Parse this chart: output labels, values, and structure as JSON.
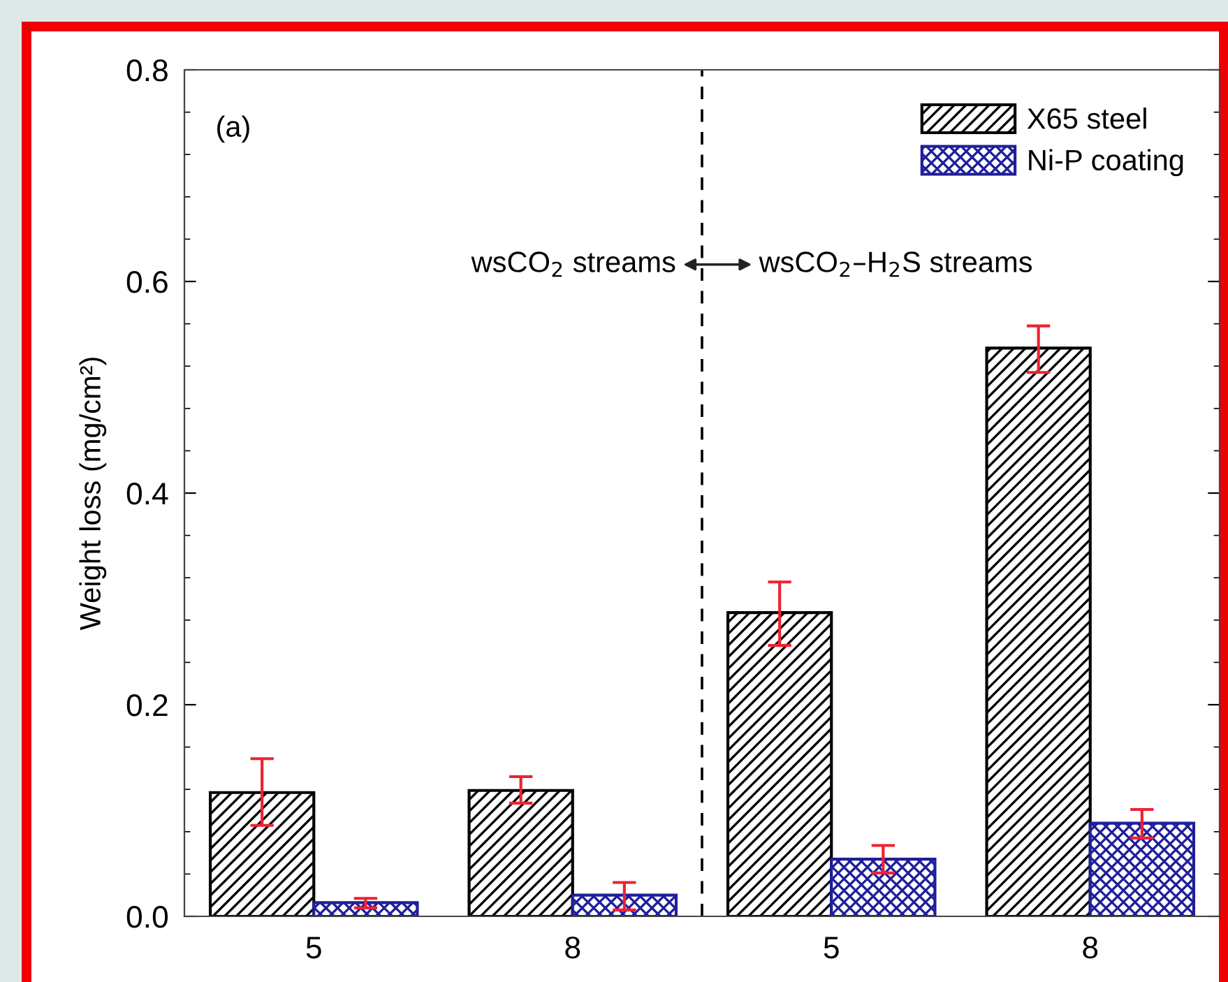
{
  "chart_data": {
    "type": "bar",
    "ylabel": "Weight loss (mg/cm²)",
    "categories": [
      "5",
      "8",
      "5",
      "8"
    ],
    "ylim": [
      0,
      0.8
    ],
    "yticks": [
      {
        "value": 0,
        "label": "0.0"
      },
      0.2,
      0.4,
      0.6,
      0.8
    ],
    "series": [
      {
        "name": "X65 steel",
        "color": "#000000",
        "values": [
          0.117,
          0.119,
          0.287,
          0.537
        ],
        "errors": [
          [
            0.086,
            0.149
          ],
          [
            0.107,
            0.132
          ],
          [
            0.256,
            0.316
          ],
          [
            0.514,
            0.558
          ]
        ]
      },
      {
        "name": "Ni-P coating",
        "color": "#1f1f99",
        "values": [
          0.013,
          0.02,
          0.054,
          0.088
        ],
        "errors": [
          [
            0.008,
            0.017
          ],
          [
            0.006,
            0.032
          ],
          [
            0.041,
            0.067
          ],
          [
            0.074,
            0.101
          ]
        ]
      }
    ],
    "annotations": [
      "(a)",
      "wsCO$_{2}$ streams",
      "wsCO$_{2}$–H$_{2}$S streams"
    ],
    "legend": "top right",
    "grid": false
  }
}
